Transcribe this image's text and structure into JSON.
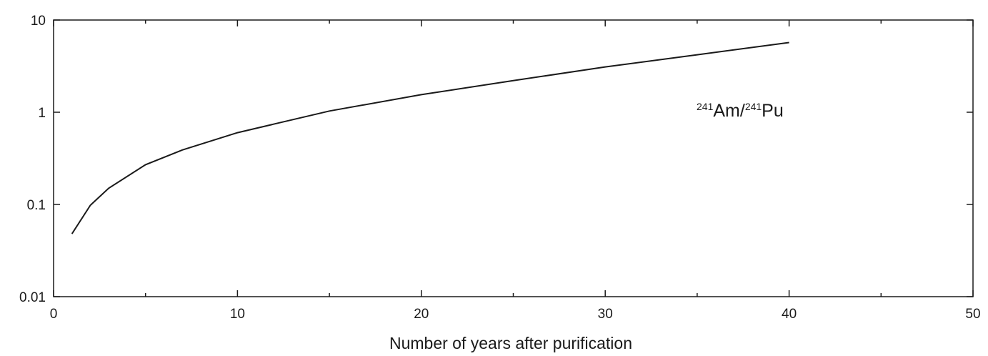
{
  "chart_data": {
    "type": "line",
    "title": "",
    "xlabel": "Number of years after purification",
    "ylabel": "",
    "xlim": [
      0,
      50
    ],
    "ylim": [
      0.01,
      10
    ],
    "y_scale": "log",
    "grid": false,
    "x_ticks": [
      0,
      10,
      20,
      30,
      40,
      50
    ],
    "x_tick_labels": [
      "0",
      "10",
      "20",
      "30",
      "40",
      "50"
    ],
    "x_minor_ticks": [
      5,
      15,
      25,
      35,
      45
    ],
    "y_ticks": [
      0.01,
      0.1,
      1,
      10
    ],
    "y_tick_labels": [
      "0.01",
      "0.1",
      "1",
      "10"
    ],
    "annotation": {
      "sup1": "241",
      "text1": "Am/",
      "sup2": "241",
      "text2": "Pu"
    },
    "series": [
      {
        "x": [
          1,
          2,
          3,
          5,
          7,
          10,
          15,
          20,
          25,
          30,
          35,
          40
        ],
        "y": [
          0.048,
          0.098,
          0.15,
          0.27,
          0.39,
          0.6,
          1.03,
          1.55,
          2.2,
          3.1,
          4.2,
          5.7
        ]
      }
    ]
  }
}
